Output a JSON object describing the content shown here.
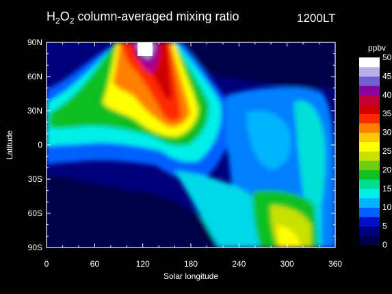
{
  "chart_data": {
    "type": "heatmap",
    "title_parts": [
      "H",
      "2",
      "O",
      "2",
      " column-averaged mixing ratio"
    ],
    "local_time": "1200LT",
    "xlabel": "Solar longitude",
    "ylabel": "Latitude",
    "xlim": [
      0,
      360
    ],
    "ylim": [
      -90,
      90
    ],
    "x_ticks": [
      0,
      60,
      120,
      180,
      240,
      300,
      360
    ],
    "x_tick_labels": [
      "0",
      "60",
      "120",
      "180",
      "240",
      "300",
      "360"
    ],
    "y_ticks": [
      90,
      60,
      30,
      0,
      -30,
      -60,
      -90
    ],
    "y_tick_labels": [
      "90N",
      "60N",
      "30N",
      "0",
      "30S",
      "60S",
      "90S"
    ],
    "colorbar": {
      "unit": "ppbv",
      "range": [
        0,
        50
      ],
      "ticks": [
        0,
        5,
        10,
        15,
        20,
        25,
        30,
        35,
        40,
        45,
        50
      ],
      "tick_labels": [
        "0",
        "5",
        "10",
        "15",
        "20",
        "25",
        "30",
        "35",
        "40",
        "45",
        "50"
      ],
      "colors": [
        "#00004a",
        "#00007d",
        "#0010c8",
        "#0060ff",
        "#00b4ff",
        "#00f0e8",
        "#00e090",
        "#10c020",
        "#70cc10",
        "#c8e000",
        "#ffff00",
        "#ffc800",
        "#ff8000",
        "#ff2a00",
        "#d00000",
        "#c0003a",
        "#8a00a0",
        "#7060d0",
        "#b8b0e8",
        "#ffffff"
      ]
    },
    "grid": false,
    "legend": "right colorbar"
  }
}
